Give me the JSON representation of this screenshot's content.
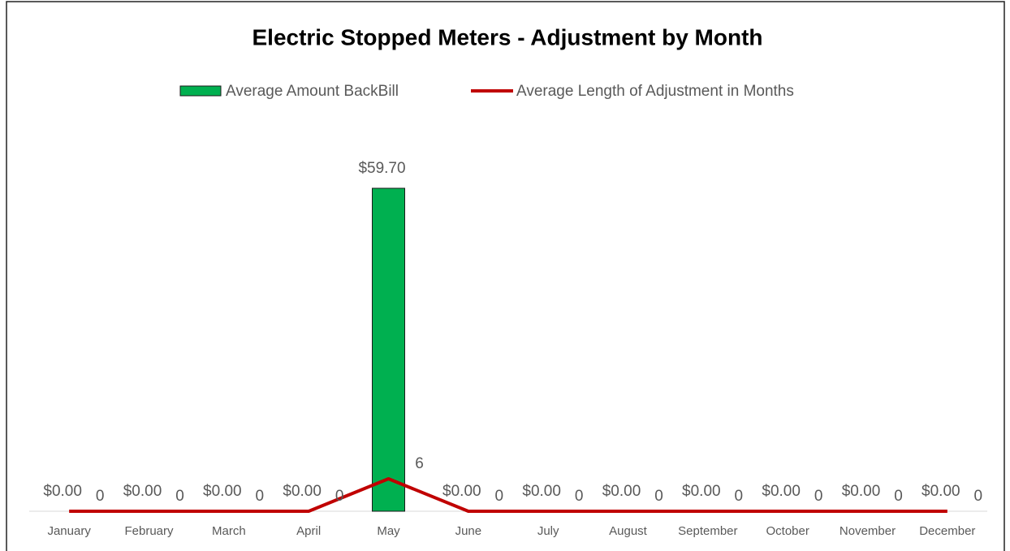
{
  "chart_data": {
    "type": "combo",
    "title": "Electric Stopped Meters - Adjustment by Month",
    "categories": [
      "January",
      "February",
      "March",
      "April",
      "May",
      "June",
      "July",
      "August",
      "September",
      "October",
      "November",
      "December"
    ],
    "series": [
      {
        "name": "Average Amount BackBill",
        "type": "bar",
        "color": "#00b050",
        "values": [
          0,
          0,
          0,
          0,
          59.7,
          0,
          0,
          0,
          0,
          0,
          0,
          0
        ],
        "value_labels": [
          "$0.00",
          "$0.00",
          "$0.00",
          "$0.00",
          "$59.70",
          "$0.00",
          "$0.00",
          "$0.00",
          "$0.00",
          "$0.00",
          "$0.00",
          "$0.00"
        ]
      },
      {
        "name": "Average Length of Adjustment in Months",
        "type": "line",
        "color": "#c00000",
        "values": [
          0,
          0,
          0,
          0,
          6,
          0,
          0,
          0,
          0,
          0,
          0,
          0
        ]
      }
    ],
    "ylim": [
      0,
      66
    ],
    "legend": "top"
  }
}
